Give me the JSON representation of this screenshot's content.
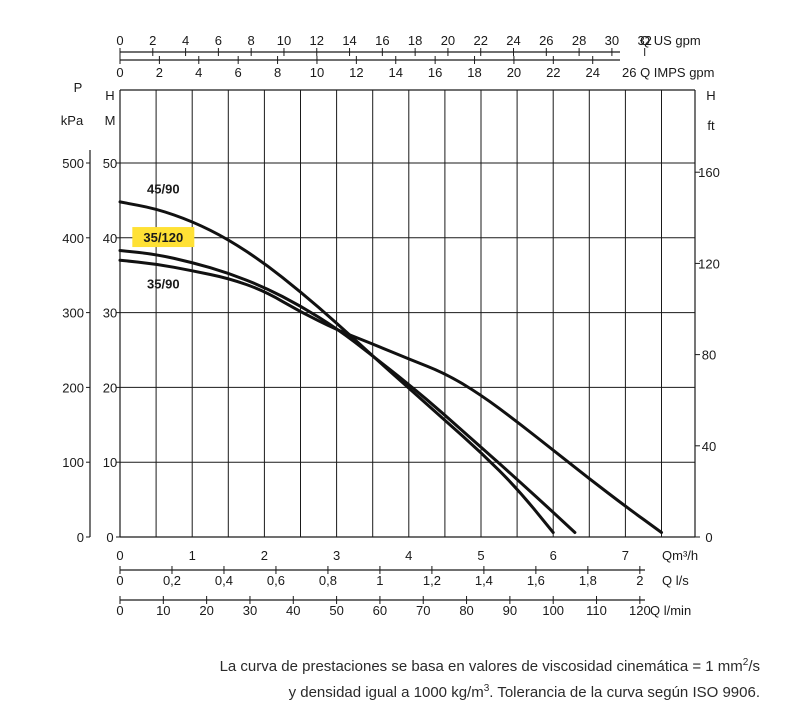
{
  "chart_data": {
    "type": "line",
    "title": "",
    "grid": true,
    "axes": {
      "left_pressure": {
        "unit_top": "P",
        "unit": "kPa",
        "range": [
          0,
          500
        ],
        "ticks": [
          0,
          100,
          200,
          300,
          400,
          500
        ]
      },
      "left_head": {
        "unit_top": "H",
        "unit": "M",
        "range": [
          0,
          50
        ],
        "ticks": [
          0,
          10,
          20,
          30,
          40,
          50
        ]
      },
      "right_head": {
        "unit_top": "H",
        "unit": "ft",
        "ticks": [
          0,
          40,
          80,
          120,
          160
        ]
      },
      "top_us_gpm": {
        "unit": "Q US gpm",
        "ticks": [
          0,
          2,
          4,
          6,
          8,
          10,
          12,
          14,
          16,
          18,
          20,
          22,
          24,
          26,
          28,
          30,
          32
        ]
      },
      "top_imps_gpm": {
        "unit": "26 Q IMPS gpm",
        "ticks": [
          0,
          2,
          4,
          6,
          8,
          10,
          12,
          14,
          16,
          18,
          20,
          22,
          24
        ]
      },
      "bottom_m3h": {
        "unit": "Qm³/h",
        "range": [
          0,
          7.5
        ],
        "ticks": [
          0,
          1,
          2,
          3,
          4,
          5,
          6,
          7
        ]
      },
      "bottom_ls": {
        "unit": "Q l/s",
        "ticks": [
          "0",
          "0,2",
          "0,4",
          "0,6",
          "0,8",
          "1",
          "1,2",
          "1,4",
          "1,6",
          "1,8",
          "2"
        ]
      },
      "bottom_lmin": {
        "unit": "Q l/min",
        "ticks": [
          0,
          10,
          20,
          30,
          40,
          50,
          60,
          70,
          80,
          90,
          100,
          110,
          120
        ]
      }
    },
    "series": [
      {
        "name": "45/90",
        "highlight": false,
        "color": "#111111",
        "x": [
          0,
          0.5,
          1,
          1.5,
          2,
          2.5,
          3,
          3.5,
          4,
          4.5,
          5,
          5.5,
          6.0
        ],
        "y": [
          44.8,
          43.9,
          42.2,
          39.8,
          36.6,
          32.8,
          28.6,
          24.2,
          19.9,
          15.6,
          11.3,
          6.5,
          0.6
        ]
      },
      {
        "name": "35/120",
        "highlight": true,
        "highlight_color": "#ffe135",
        "color": "#111111",
        "x": [
          0,
          0.5,
          1,
          1.5,
          2,
          2.5,
          3,
          3.5,
          4,
          4.5,
          5,
          5.5,
          6.0,
          6.3
        ],
        "y": [
          38.3,
          37.8,
          36.7,
          35.3,
          33.4,
          30.9,
          27.9,
          24.2,
          20.4,
          16.3,
          12.0,
          7.7,
          3.3,
          0.6
        ]
      },
      {
        "name": "35/90",
        "highlight": false,
        "color": "#111111",
        "x": [
          0,
          0.5,
          1,
          1.5,
          2,
          2.5,
          3,
          3.5,
          4,
          4.5,
          5,
          5.5,
          6,
          6.5,
          7,
          7.5
        ],
        "y": [
          37.0,
          36.5,
          35.6,
          34.6,
          32.9,
          30.1,
          27.7,
          25.8,
          23.8,
          21.9,
          19.0,
          15.4,
          11.6,
          7.8,
          4.1,
          0.6
        ]
      }
    ]
  },
  "footnote": {
    "line1_prefix": "La curva de prestaciones se basa en valores de viscosidad cinemática = 1 mm",
    "line1_sup": "2",
    "line1_suffix": "/s",
    "line2_prefix": "y densidad igual a 1000 kg/m",
    "line2_sup": "3",
    "line2_suffix": ". Tolerancia de la curva según ISO 9906."
  }
}
